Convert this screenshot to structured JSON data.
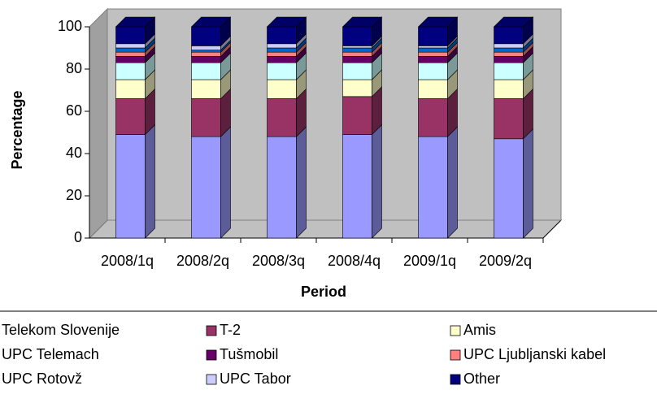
{
  "chart_data": {
    "type": "stacked_bar_3d",
    "x_label": "Period",
    "y_label": "Percentage",
    "categories": [
      "2008/1q",
      "2008/2q",
      "2008/3q",
      "2008/4q",
      "2009/1q",
      "2009/2q"
    ],
    "ylim": [
      0,
      100
    ],
    "yticks": [
      0,
      20,
      40,
      60,
      80,
      100
    ],
    "legend": "bottom",
    "series": [
      {
        "name": "Telekom Slovenije",
        "color": "#9999ff",
        "values": [
          49,
          48,
          48,
          49,
          48,
          47
        ]
      },
      {
        "name": "T-2",
        "color": "#993366",
        "values": [
          17,
          18,
          18,
          18,
          18,
          19
        ]
      },
      {
        "name": "Amis",
        "color": "#ffffcc",
        "values": [
          9,
          9,
          9,
          8,
          9,
          9
        ]
      },
      {
        "name": "UPC Telemach",
        "color": "#ccffff",
        "values": [
          8,
          8,
          8,
          8,
          8,
          8
        ]
      },
      {
        "name": "Tušmobil",
        "color": "#660066",
        "values": [
          3,
          3,
          3,
          3,
          3,
          3
        ]
      },
      {
        "name": "UPC Ljubljanski kabel",
        "color": "#ff8080",
        "values": [
          2,
          2,
          2,
          2,
          2,
          2
        ]
      },
      {
        "name": "UPC Rotovž",
        "color": "#0066cc",
        "values": [
          2,
          1,
          2,
          2,
          2,
          2
        ]
      },
      {
        "name": "UPC Tabor",
        "color": "#ccccff",
        "values": [
          2,
          2,
          2,
          1,
          1,
          2
        ]
      },
      {
        "name": "Other",
        "color": "#000080",
        "values": [
          8,
          9,
          8,
          9,
          9,
          8
        ]
      }
    ]
  }
}
